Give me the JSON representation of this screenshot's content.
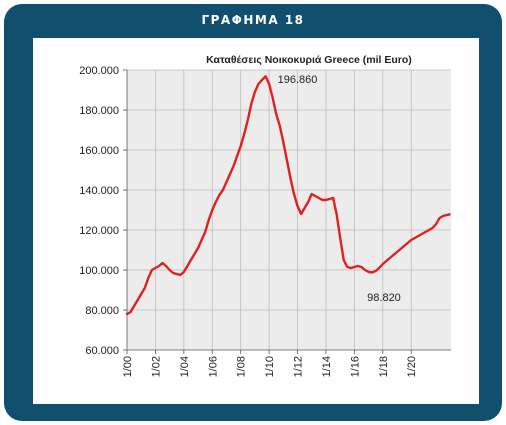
{
  "frame_title": "ΓΡΑΦΗΜΑ 18",
  "chart_data": {
    "type": "line",
    "title": "Καταθέσεις Νοικοκυριά Greece (mil Euro)",
    "xlabel": "",
    "ylabel": "",
    "ylim": [
      60000,
      200000
    ],
    "y_ticks": [
      60000,
      80000,
      100000,
      120000,
      140000,
      160000,
      180000,
      200000
    ],
    "y_tick_labels": [
      "60.000",
      "80.000",
      "100.000",
      "120.000",
      "140.000",
      "160.000",
      "180.000",
      "200.000"
    ],
    "x_tick_labels": [
      "1/00",
      "1/02",
      "1/04",
      "1/06",
      "1/08",
      "1/10",
      "1/12",
      "1/14",
      "1/16",
      "1/18",
      "1/20"
    ],
    "xlim": [
      2000.0,
      2022.8
    ],
    "grid": true,
    "line_color": "#e02020",
    "series": [
      {
        "x": [
          2000.0,
          2000.25,
          2000.5,
          2000.75,
          2001.0,
          2001.25,
          2001.5,
          2001.75,
          2002.0,
          2002.25,
          2002.5,
          2002.75,
          2003.0,
          2003.25,
          2003.5,
          2003.75,
          2004.0,
          2004.25,
          2004.5,
          2004.75,
          2005.0,
          2005.25,
          2005.5,
          2005.75,
          2006.0,
          2006.25,
          2006.5,
          2006.75,
          2007.0,
          2007.25,
          2007.5,
          2007.75,
          2008.0,
          2008.25,
          2008.5,
          2008.75,
          2009.0,
          2009.25,
          2009.5,
          2009.75,
          2010.0,
          2010.25,
          2010.5,
          2010.75,
          2011.0,
          2011.25,
          2011.5,
          2011.75,
          2012.0,
          2012.25,
          2012.5,
          2012.75,
          2013.0,
          2013.25,
          2013.5,
          2013.75,
          2014.0,
          2014.25,
          2014.5,
          2014.75,
          2015.0,
          2015.25,
          2015.5,
          2015.75,
          2016.0,
          2016.25,
          2016.5,
          2016.75,
          2017.0,
          2017.25,
          2017.5,
          2017.75,
          2018.0,
          2018.25,
          2018.5,
          2018.75,
          2019.0,
          2019.25,
          2019.5,
          2019.75,
          2020.0,
          2020.25,
          2020.5,
          2020.75,
          2021.0,
          2021.25,
          2021.5,
          2021.75,
          2022.0,
          2022.25,
          2022.5,
          2022.7
        ],
        "values": [
          78000,
          79000,
          82000,
          85000,
          88000,
          91000,
          96000,
          100000,
          101000,
          102000,
          103500,
          102000,
          100000,
          98500,
          98000,
          97500,
          99000,
          102000,
          105000,
          108000,
          111000,
          115000,
          119000,
          125000,
          130000,
          134000,
          137500,
          140000,
          144000,
          148000,
          152000,
          157000,
          162000,
          168000,
          175000,
          183000,
          189000,
          193000,
          195000,
          196860,
          193000,
          186000,
          178000,
          172000,
          164000,
          155000,
          146000,
          138000,
          132000,
          128000,
          131000,
          134000,
          138000,
          137000,
          136000,
          135000,
          135000,
          135500,
          136000,
          128000,
          116000,
          105000,
          101500,
          101000,
          101500,
          102000,
          101500,
          100000,
          99000,
          98820,
          99500,
          101000,
          103000,
          104500,
          106000,
          107500,
          109000,
          110500,
          112000,
          113500,
          115000,
          116000,
          117000,
          118000,
          119000,
          120000,
          121000,
          123000,
          126000,
          127000,
          127500,
          127800
        ]
      }
    ],
    "annotations": [
      {
        "text": "196.860",
        "x": 2010.6,
        "y": 193500
      },
      {
        "text": "98.820",
        "x": 2016.9,
        "y": 84500
      }
    ]
  }
}
